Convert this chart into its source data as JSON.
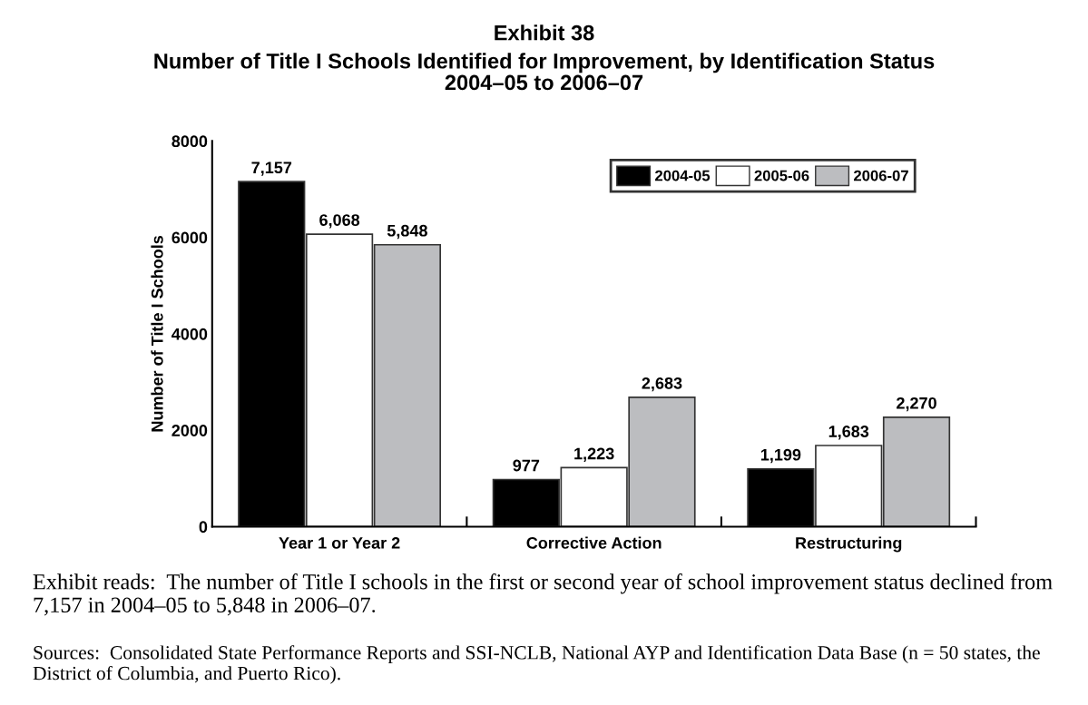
{
  "chart_data": {
    "type": "bar",
    "title": "Exhibit 38",
    "subtitle": "Number of Title I Schools Identified for Improvement, by Identification Status\n2004–05 to 2006–07",
    "ylabel": "Number of Title I Schools",
    "categories": [
      "Year 1 or Year 2",
      "Corrective Action",
      "Restructuring"
    ],
    "series": [
      {
        "name": "2004-05",
        "color": "#000000",
        "values": [
          7157,
          977,
          1199
        ],
        "value_labels": [
          "7,157",
          "977",
          "1,199"
        ]
      },
      {
        "name": "2005-06",
        "color": "#ffffff",
        "values": [
          6068,
          1223,
          1683
        ],
        "value_labels": [
          "6,068",
          "1,223",
          "1,683"
        ]
      },
      {
        "name": "2006-07",
        "color": "#bcbdc0",
        "values": [
          5848,
          2683,
          2270
        ],
        "value_labels": [
          "5,848",
          "2,683",
          "2,270"
        ]
      }
    ],
    "ylim": [
      0,
      8000
    ],
    "yticks": [
      0,
      2000,
      4000,
      6000,
      8000
    ],
    "grid": false,
    "legend": "top right",
    "annotations": [
      "Exhibit reads:  The number of Title I schools in the first or second year of school improvement status declined from 7,157 in 2004–05 to 5,848 in 2006–07.",
      "Sources:  Consolidated State Performance Reports and SSI-NCLB, National AYP and Identification Data Base (n = 50 states, the District of Columbia, and Puerto Rico)."
    ]
  }
}
